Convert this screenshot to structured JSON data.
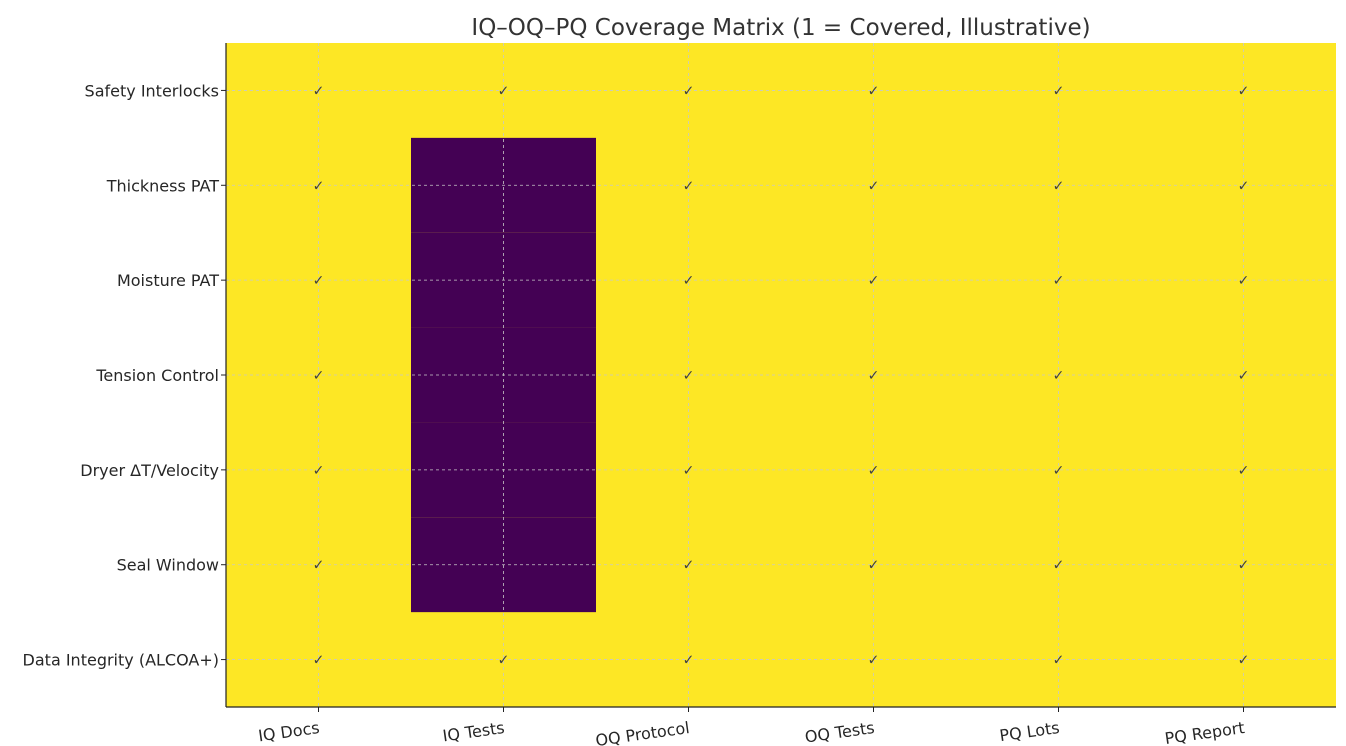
{
  "chart_data": {
    "type": "heatmap",
    "title": "IQ–OQ–PQ Coverage Matrix (1 = Covered, Illustrative)",
    "xlabel": "",
    "ylabel": "",
    "columns": [
      "IQ Docs",
      "IQ Tests",
      "OQ Protocol",
      "OQ Tests",
      "PQ Lots",
      "PQ Report"
    ],
    "rows": [
      "Safety Interlocks",
      "Thickness PAT",
      "Moisture PAT",
      "Tension Control",
      "Dryer ΔT/Velocity",
      "Seal Window",
      "Data Integrity (ALCOA+)"
    ],
    "values": [
      [
        1,
        1,
        1,
        1,
        1,
        1
      ],
      [
        1,
        0,
        1,
        1,
        1,
        1
      ],
      [
        1,
        0,
        1,
        1,
        1,
        1
      ],
      [
        1,
        0,
        1,
        1,
        1,
        1
      ],
      [
        1,
        0,
        1,
        1,
        1,
        1
      ],
      [
        1,
        0,
        1,
        1,
        1,
        1
      ],
      [
        1,
        1,
        1,
        1,
        1,
        1
      ]
    ],
    "covered_marker": "✓",
    "colors": {
      "covered": "#fde725",
      "not_covered": "#440154",
      "grid": "#c8c8c8"
    },
    "grid": true,
    "x_tick_rotation_deg": 8
  }
}
